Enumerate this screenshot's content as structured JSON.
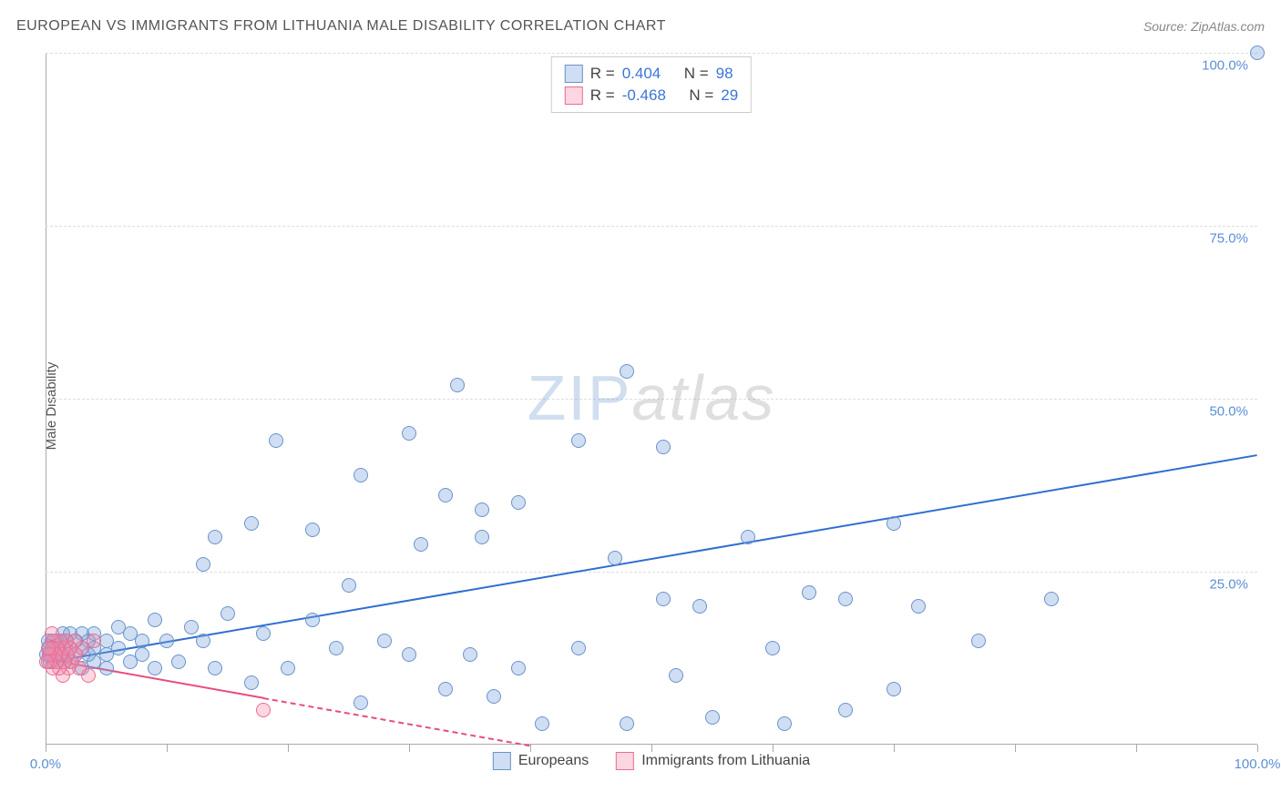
{
  "title": "EUROPEAN VS IMMIGRANTS FROM LITHUANIA MALE DISABILITY CORRELATION CHART",
  "source": "Source: ZipAtlas.com",
  "y_axis_label": "Male Disability",
  "watermark_zip": "ZIP",
  "watermark_atlas": "atlas",
  "chart": {
    "type": "scatter",
    "xlim": [
      0,
      100
    ],
    "ylim": [
      0,
      100
    ],
    "x_ticks": [
      0,
      10,
      20,
      30,
      40,
      50,
      60,
      70,
      80,
      90,
      100
    ],
    "y_ticks": [
      25,
      50,
      75,
      100
    ],
    "x_tick_labels": {
      "0": "0.0%",
      "100": "100.0%"
    },
    "y_tick_labels": {
      "25": "25.0%",
      "50": "50.0%",
      "75": "75.0%",
      "100": "100.0%"
    },
    "grid_color": "#dddddd",
    "axis_color": "#aaaaaa",
    "background_color": "#ffffff",
    "series": [
      {
        "name": "Europeans",
        "label": "Europeans",
        "color_fill": "rgba(120,160,220,0.35)",
        "color_stroke": "#6a93c9",
        "trend_color": "#2f6fd0",
        "trend_start": [
          0,
          12
        ],
        "trend_end": [
          100,
          42
        ],
        "marker_radius": 8,
        "R_label": "R =",
        "R": "0.404",
        "N_label": "N =",
        "N": "98",
        "points": [
          [
            100,
            100
          ],
          [
            48,
            54
          ],
          [
            34,
            52
          ],
          [
            30,
            45
          ],
          [
            19,
            44
          ],
          [
            44,
            44
          ],
          [
            51,
            43
          ],
          [
            83,
            21
          ],
          [
            26,
            39
          ],
          [
            36,
            34
          ],
          [
            39,
            35
          ],
          [
            33,
            36
          ],
          [
            17,
            32
          ],
          [
            22,
            31
          ],
          [
            14,
            30
          ],
          [
            31,
            29
          ],
          [
            36,
            30
          ],
          [
            47,
            27
          ],
          [
            13,
            26
          ],
          [
            37,
            7
          ],
          [
            51,
            21
          ],
          [
            54,
            20
          ],
          [
            58,
            30
          ],
          [
            63,
            22
          ],
          [
            66,
            21
          ],
          [
            72,
            20
          ],
          [
            60,
            14
          ],
          [
            70,
            32
          ],
          [
            77,
            15
          ],
          [
            52,
            10
          ],
          [
            55,
            4
          ],
          [
            61,
            3
          ],
          [
            66,
            5
          ],
          [
            70,
            8
          ],
          [
            44,
            14
          ],
          [
            48,
            3
          ],
          [
            41,
            3
          ],
          [
            39,
            11
          ],
          [
            35,
            13
          ],
          [
            33,
            8
          ],
          [
            30,
            13
          ],
          [
            28,
            15
          ],
          [
            26,
            6
          ],
          [
            24,
            14
          ],
          [
            22,
            18
          ],
          [
            25,
            23
          ],
          [
            20,
            11
          ],
          [
            18,
            16
          ],
          [
            17,
            9
          ],
          [
            15,
            19
          ],
          [
            14,
            11
          ],
          [
            13,
            15
          ],
          [
            12,
            17
          ],
          [
            11,
            12
          ],
          [
            10,
            15
          ],
          [
            9,
            18
          ],
          [
            9,
            11
          ],
          [
            8,
            15
          ],
          [
            8,
            13
          ],
          [
            7,
            16
          ],
          [
            7,
            12
          ],
          [
            6,
            14
          ],
          [
            6,
            17
          ],
          [
            5,
            13
          ],
          [
            5,
            15
          ],
          [
            5,
            11
          ],
          [
            4,
            14
          ],
          [
            4,
            16
          ],
          [
            4,
            12
          ],
          [
            3.5,
            15
          ],
          [
            3.5,
            13
          ],
          [
            3,
            14
          ],
          [
            3,
            16
          ],
          [
            3,
            11
          ],
          [
            2.5,
            13
          ],
          [
            2.5,
            15
          ],
          [
            2,
            14
          ],
          [
            2,
            12
          ],
          [
            2,
            16
          ],
          [
            1.8,
            13
          ],
          [
            1.7,
            15
          ],
          [
            1.5,
            14
          ],
          [
            1.5,
            12
          ],
          [
            1.4,
            16
          ],
          [
            1.3,
            13
          ],
          [
            1.2,
            15
          ],
          [
            1.1,
            14
          ],
          [
            1.0,
            12
          ],
          [
            0.9,
            15
          ],
          [
            0.8,
            13
          ],
          [
            0.7,
            14
          ],
          [
            0.6,
            12
          ],
          [
            0.5,
            15
          ],
          [
            0.4,
            13
          ],
          [
            0.3,
            14
          ],
          [
            0.2,
            12
          ],
          [
            0.2,
            15
          ],
          [
            0.1,
            13
          ]
        ]
      },
      {
        "name": "Immigrants from Lithuania",
        "label": "Immigrants from Lithuania",
        "color_fill": "rgba(245,140,170,0.35)",
        "color_stroke": "#e86d94",
        "trend_color": "#e84d7a",
        "trend_solid_end": 18,
        "trend_start": [
          0,
          12.5
        ],
        "trend_end": [
          40,
          0
        ],
        "marker_radius": 8,
        "R_label": "R =",
        "R": "-0.468",
        "N_label": "N =",
        "N": "29",
        "points": [
          [
            18,
            5
          ],
          [
            4,
            15
          ],
          [
            3.5,
            10
          ],
          [
            3,
            14
          ],
          [
            2.8,
            11
          ],
          [
            2.5,
            13
          ],
          [
            2.4,
            15
          ],
          [
            2.2,
            12
          ],
          [
            2.0,
            14
          ],
          [
            1.9,
            11
          ],
          [
            1.8,
            13
          ],
          [
            1.7,
            15
          ],
          [
            1.6,
            12
          ],
          [
            1.5,
            14
          ],
          [
            1.4,
            10
          ],
          [
            1.3,
            13
          ],
          [
            1.2,
            15
          ],
          [
            1.1,
            11
          ],
          [
            1.0,
            14
          ],
          [
            0.9,
            12
          ],
          [
            0.8,
            13
          ],
          [
            0.7,
            15
          ],
          [
            0.6,
            11
          ],
          [
            0.5,
            14
          ],
          [
            0.5,
            16
          ],
          [
            0.4,
            12
          ],
          [
            0.3,
            13
          ],
          [
            0.2,
            14
          ],
          [
            0.1,
            12
          ]
        ]
      }
    ]
  }
}
